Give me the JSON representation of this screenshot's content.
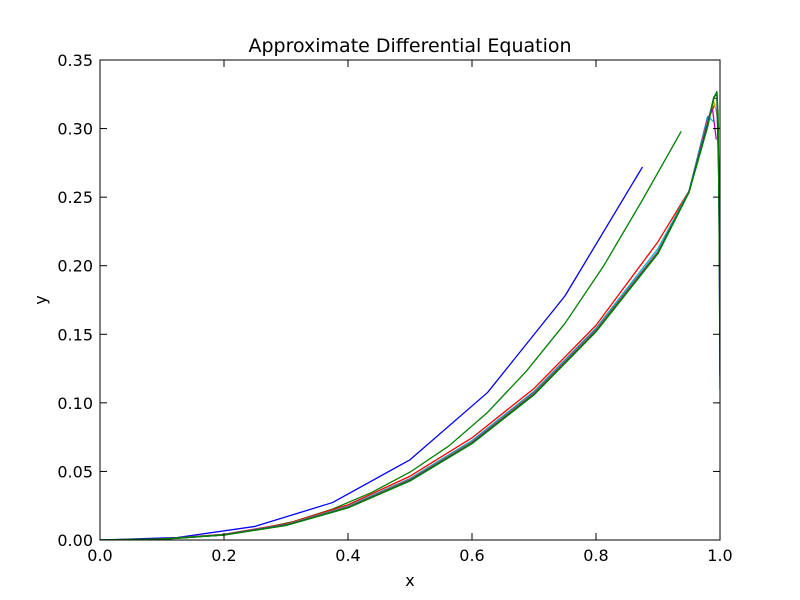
{
  "chart_data": {
    "type": "line",
    "title": "Approximate Differential Equation",
    "xlabel": "x",
    "ylabel": "y",
    "xlim": [
      0.0,
      1.0
    ],
    "ylim": [
      0.0,
      0.35
    ],
    "grid": false,
    "x_ticks": [
      "0.0",
      "0.2",
      "0.4",
      "0.6",
      "0.8",
      "1.0"
    ],
    "y_ticks": [
      "0.00",
      "0.05",
      "0.10",
      "0.15",
      "0.20",
      "0.25",
      "0.30",
      "0.35"
    ],
    "series": [
      {
        "color": "#0000ff",
        "points": [
          [
            0,
            0
          ],
          [
            0.125,
            0.0018
          ],
          [
            0.25,
            0.0099
          ],
          [
            0.375,
            0.0273
          ],
          [
            0.5,
            0.0585
          ],
          [
            0.625,
            0.1075
          ],
          [
            0.75,
            0.178
          ],
          [
            0.875,
            0.272
          ]
        ]
      },
      {
        "color": "#008000",
        "points": [
          [
            0,
            0
          ],
          [
            0.0625,
            0.0003
          ],
          [
            0.125,
            0.0012
          ],
          [
            0.1875,
            0.0034
          ],
          [
            0.25,
            0.0075
          ],
          [
            0.3125,
            0.0135
          ],
          [
            0.375,
            0.0225
          ],
          [
            0.4375,
            0.0345
          ],
          [
            0.5,
            0.0495
          ],
          [
            0.5625,
            0.0685
          ],
          [
            0.625,
            0.093
          ],
          [
            0.6875,
            0.123
          ],
          [
            0.75,
            0.158
          ],
          [
            0.8125,
            0.2
          ],
          [
            0.875,
            0.248
          ],
          [
            0.9375,
            0.298
          ]
        ]
      },
      {
        "color": "#ff0000",
        "points": [
          [
            0,
            0
          ],
          [
            0.1,
            0.0008
          ],
          [
            0.2,
            0.0042
          ],
          [
            0.3,
            0.0118
          ],
          [
            0.4,
            0.0256
          ],
          [
            0.5,
            0.0465
          ],
          [
            0.6,
            0.0745
          ],
          [
            0.7,
            0.1105
          ],
          [
            0.8,
            0.1565
          ],
          [
            0.9,
            0.2175
          ],
          [
            0.95,
            0.2545
          ],
          [
            0.97,
            0.29
          ],
          [
            0.984,
            0.31
          ],
          [
            0.992,
            0.318
          ]
        ]
      },
      {
        "color": "#00bfbf",
        "points": [
          [
            0,
            0
          ],
          [
            0.1,
            0.0007
          ],
          [
            0.2,
            0.004
          ],
          [
            0.3,
            0.0113
          ],
          [
            0.4,
            0.0246
          ],
          [
            0.5,
            0.0449
          ],
          [
            0.6,
            0.0725
          ],
          [
            0.7,
            0.1085
          ],
          [
            0.8,
            0.1545
          ],
          [
            0.9,
            0.2125
          ],
          [
            0.95,
            0.2545
          ],
          [
            0.98,
            0.309
          ],
          [
            0.99,
            0.305
          ]
        ]
      },
      {
        "color": "#bf00bf",
        "points": [
          [
            0,
            0
          ],
          [
            0.1,
            0.0007
          ],
          [
            0.2,
            0.0039
          ],
          [
            0.3,
            0.0111
          ],
          [
            0.4,
            0.0242
          ],
          [
            0.5,
            0.0443
          ],
          [
            0.6,
            0.0716
          ],
          [
            0.7,
            0.1075
          ],
          [
            0.8,
            0.1535
          ],
          [
            0.9,
            0.2105
          ],
          [
            0.95,
            0.2535
          ],
          [
            0.98,
            0.307
          ],
          [
            0.988,
            0.314
          ],
          [
            0.994,
            0.292
          ]
        ]
      },
      {
        "color": "#bfbf00",
        "points": [
          [
            0,
            0
          ],
          [
            0.1,
            0.0007
          ],
          [
            0.2,
            0.0038
          ],
          [
            0.3,
            0.011
          ],
          [
            0.4,
            0.024
          ],
          [
            0.5,
            0.044
          ],
          [
            0.6,
            0.0712
          ],
          [
            0.7,
            0.107
          ],
          [
            0.8,
            0.153
          ],
          [
            0.9,
            0.21
          ],
          [
            0.95,
            0.254
          ],
          [
            0.98,
            0.305
          ],
          [
            0.99,
            0.32
          ],
          [
            0.995,
            0.31
          ],
          [
            0.998,
            0.3
          ]
        ]
      },
      {
        "color": "#555555",
        "points": [
          [
            0,
            0
          ],
          [
            0.1,
            0.0007
          ],
          [
            0.2,
            0.0038
          ],
          [
            0.3,
            0.0109
          ],
          [
            0.4,
            0.0238
          ],
          [
            0.5,
            0.0437
          ],
          [
            0.6,
            0.0709
          ],
          [
            0.7,
            0.1066
          ],
          [
            0.8,
            0.1526
          ],
          [
            0.9,
            0.2096
          ],
          [
            0.95,
            0.254
          ],
          [
            0.98,
            0.304
          ],
          [
            0.99,
            0.322
          ],
          [
            0.995,
            0.322
          ],
          [
            0.998,
            0.26
          ],
          [
            1.0,
            0.17
          ]
        ]
      },
      {
        "color": "#0000ff",
        "points": [
          [
            0,
            0
          ],
          [
            0.1,
            0.0007
          ],
          [
            0.2,
            0.0037
          ],
          [
            0.3,
            0.0108
          ],
          [
            0.4,
            0.0236
          ],
          [
            0.5,
            0.0434
          ],
          [
            0.6,
            0.0706
          ],
          [
            0.7,
            0.1062
          ],
          [
            0.8,
            0.1522
          ],
          [
            0.9,
            0.2092
          ],
          [
            0.95,
            0.2538
          ],
          [
            0.98,
            0.303
          ],
          [
            0.99,
            0.323
          ],
          [
            0.995,
            0.325
          ],
          [
            0.998,
            0.27
          ],
          [
            1.0,
            0.12
          ]
        ]
      },
      {
        "color": "#008000",
        "points": [
          [
            0,
            0
          ],
          [
            0.1,
            0.0007
          ],
          [
            0.2,
            0.0037
          ],
          [
            0.3,
            0.0107
          ],
          [
            0.4,
            0.0235
          ],
          [
            0.5,
            0.0432
          ],
          [
            0.6,
            0.0704
          ],
          [
            0.7,
            0.106
          ],
          [
            0.8,
            0.152
          ],
          [
            0.9,
            0.209
          ],
          [
            0.95,
            0.2536
          ],
          [
            0.98,
            0.302
          ],
          [
            0.99,
            0.323
          ],
          [
            0.995,
            0.326
          ],
          [
            0.997,
            0.3
          ],
          [
            0.999,
            0.22
          ],
          [
            1.0,
            0.16
          ]
        ]
      },
      {
        "color": "#008000",
        "points": [
          [
            0,
            0
          ],
          [
            0.1,
            0.0007
          ],
          [
            0.2,
            0.0036
          ],
          [
            0.3,
            0.0106
          ],
          [
            0.4,
            0.0234
          ],
          [
            0.5,
            0.043
          ],
          [
            0.6,
            0.0702
          ],
          [
            0.7,
            0.1058
          ],
          [
            0.8,
            0.1518
          ],
          [
            0.9,
            0.2088
          ],
          [
            0.95,
            0.2534
          ],
          [
            0.98,
            0.301
          ],
          [
            0.99,
            0.322
          ],
          [
            0.995,
            0.327
          ],
          [
            0.997,
            0.31
          ],
          [
            0.999,
            0.2
          ],
          [
            1.0,
            0.11
          ]
        ]
      }
    ]
  }
}
